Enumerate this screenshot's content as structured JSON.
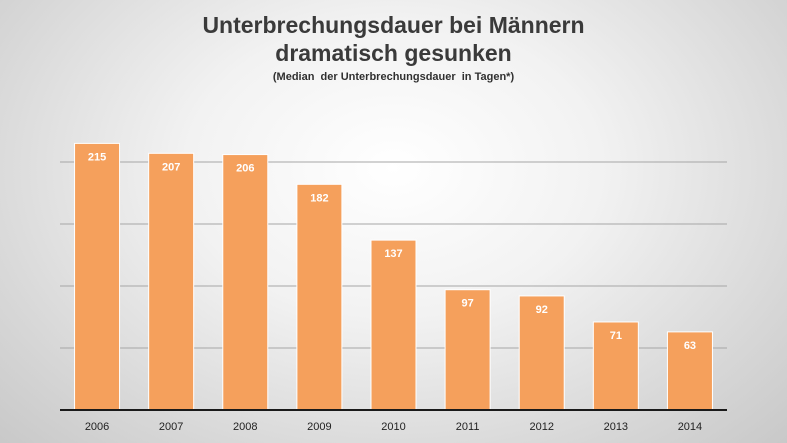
{
  "chart_data": {
    "type": "bar",
    "title_line1": "Unterbrechungsdauer bei Männern",
    "title_line2": "dramatisch gesunken",
    "subtitle": "(Median  der Unterbrechungsdauer  in Tagen*)",
    "xlabel": "",
    "ylabel": "",
    "categories": [
      "2006",
      "2007",
      "2008",
      "2009",
      "2010",
      "2011",
      "2012",
      "2013",
      "2014"
    ],
    "values": [
      215,
      207,
      206,
      182,
      137,
      97,
      92,
      71,
      63
    ],
    "ylim": [
      0,
      250
    ],
    "grid": true,
    "legend": "none",
    "bar_color": "#f5a05c",
    "bar_border_color": "#ffffff",
    "label_color": "#ffffff"
  }
}
